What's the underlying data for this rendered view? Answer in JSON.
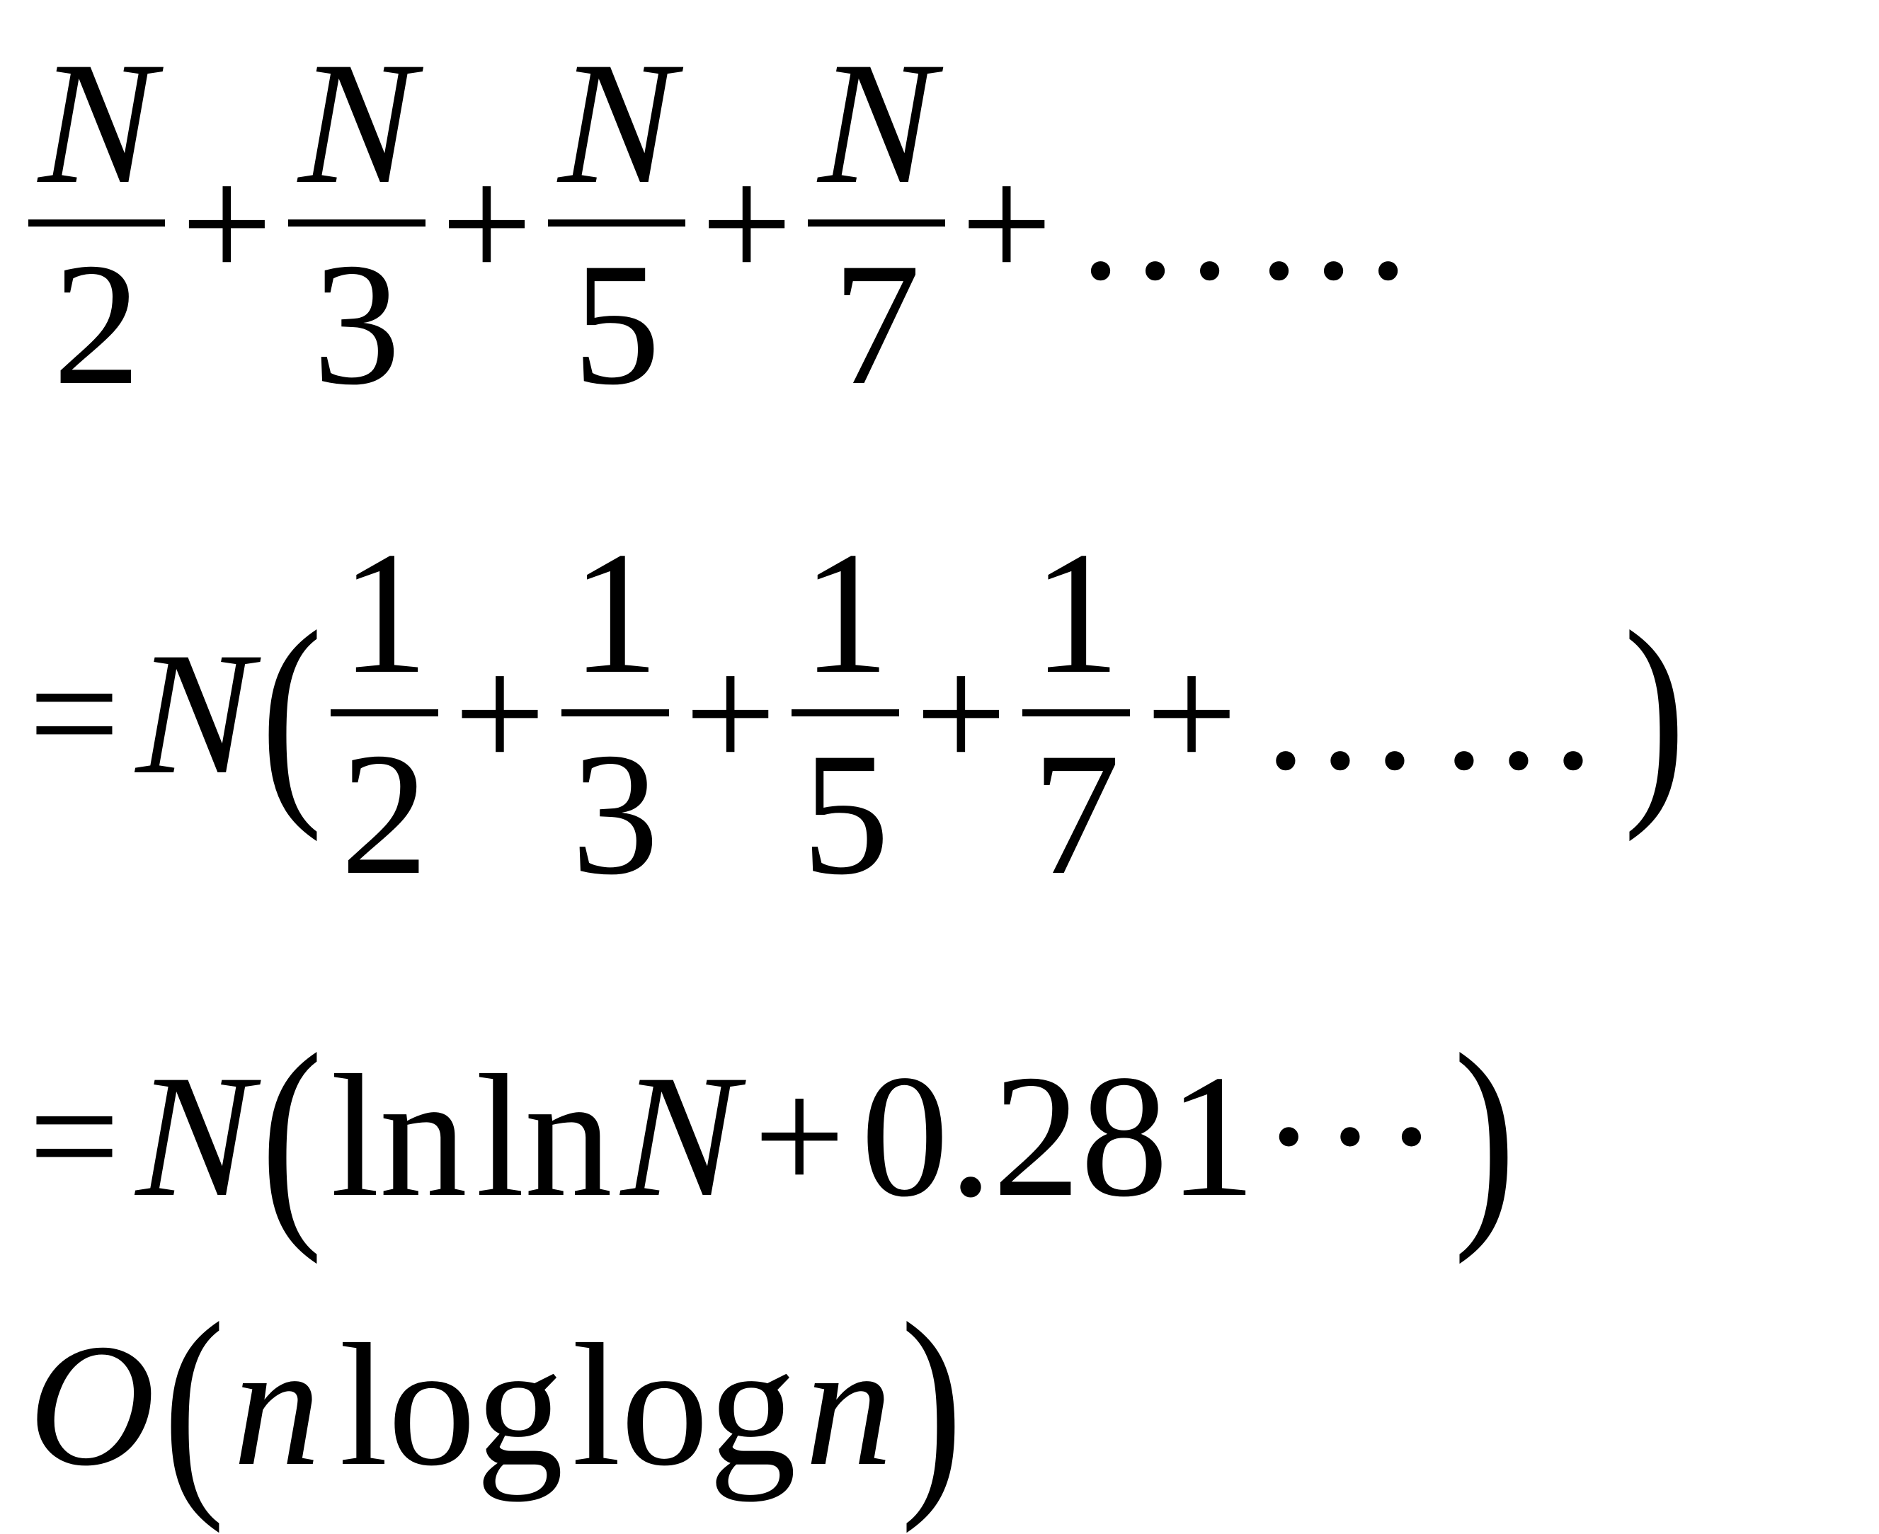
{
  "line1": {
    "terms": [
      {
        "num": "N",
        "den": "2"
      },
      {
        "num": "N",
        "den": "3"
      },
      {
        "num": "N",
        "den": "5"
      },
      {
        "num": "N",
        "den": "7"
      }
    ],
    "plus": "+",
    "ellipsis": "……"
  },
  "line2": {
    "equals": "=",
    "var": "N",
    "open_paren": "(",
    "terms": [
      {
        "num": "1",
        "den": "2"
      },
      {
        "num": "1",
        "den": "3"
      },
      {
        "num": "1",
        "den": "5"
      },
      {
        "num": "1",
        "den": "7"
      }
    ],
    "plus": "+",
    "ellipsis": "……",
    "close_paren": ")"
  },
  "line3": {
    "equals": "=",
    "var": "N",
    "open_paren": "(",
    "ln1": "ln",
    "ln2": "ln",
    "inner_var": "N",
    "plus": "+",
    "constant": "0.281",
    "ellipsis": "···",
    "close_paren": ")"
  },
  "line4": {
    "big_o": "O",
    "open_paren": "(",
    "var1": "n",
    "log1": "log",
    "log2": "log",
    "var2": "n",
    "close_paren": ")"
  }
}
